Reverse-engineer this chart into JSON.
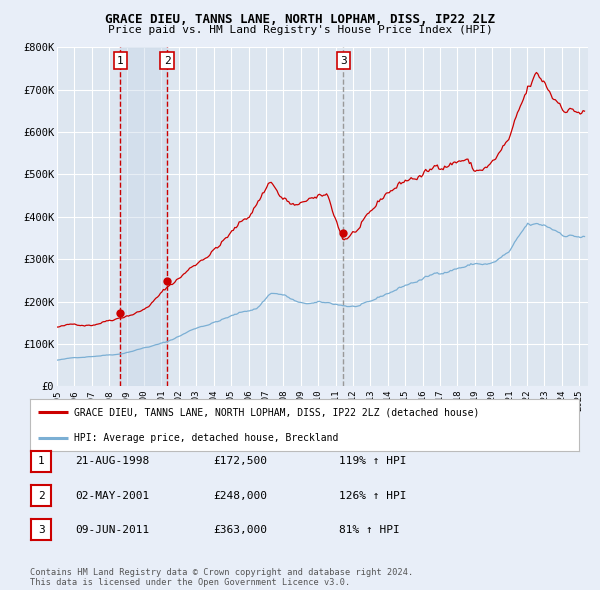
{
  "title": "GRACE DIEU, TANNS LANE, NORTH LOPHAM, DISS, IP22 2LZ",
  "subtitle": "Price paid vs. HM Land Registry's House Price Index (HPI)",
  "ylim": [
    0,
    800000
  ],
  "xlim_start": 1995.0,
  "xlim_end": 2025.5,
  "fig_bg_color": "#e8eef8",
  "plot_bg_color": "#dde6f0",
  "grid_color": "#ffffff",
  "red_line_color": "#cc0000",
  "blue_line_color": "#7bafd4",
  "sale_dot_color": "#cc0000",
  "vline_color_red": "#cc0000",
  "vline_color_gray": "#999999",
  "shade_color": "#c5d5e8",
  "sale_points": [
    {
      "date_num": 1998.64,
      "price": 172500,
      "label": "1"
    },
    {
      "date_num": 2001.33,
      "price": 248000,
      "label": "2"
    },
    {
      "date_num": 2011.44,
      "price": 363000,
      "label": "3"
    }
  ],
  "legend_entries": [
    {
      "label": "GRACE DIEU, TANNS LANE, NORTH LOPHAM, DISS, IP22 2LZ (detached house)",
      "color": "#cc0000"
    },
    {
      "label": "HPI: Average price, detached house, Breckland",
      "color": "#7bafd4"
    }
  ],
  "table_rows": [
    {
      "num": "1",
      "date": "21-AUG-1998",
      "price": "£172,500",
      "pct": "119% ↑ HPI"
    },
    {
      "num": "2",
      "date": "02-MAY-2001",
      "price": "£248,000",
      "pct": "126% ↑ HPI"
    },
    {
      "num": "3",
      "date": "09-JUN-2011",
      "price": "£363,000",
      "pct": "81% ↑ HPI"
    }
  ],
  "footer": "Contains HM Land Registry data © Crown copyright and database right 2024.\nThis data is licensed under the Open Government Licence v3.0.",
  "yticks": [
    0,
    100000,
    200000,
    300000,
    400000,
    500000,
    600000,
    700000,
    800000
  ],
  "ytick_labels": [
    "£0",
    "£100K",
    "£200K",
    "£300K",
    "£400K",
    "£500K",
    "£600K",
    "£700K",
    "£800K"
  ]
}
